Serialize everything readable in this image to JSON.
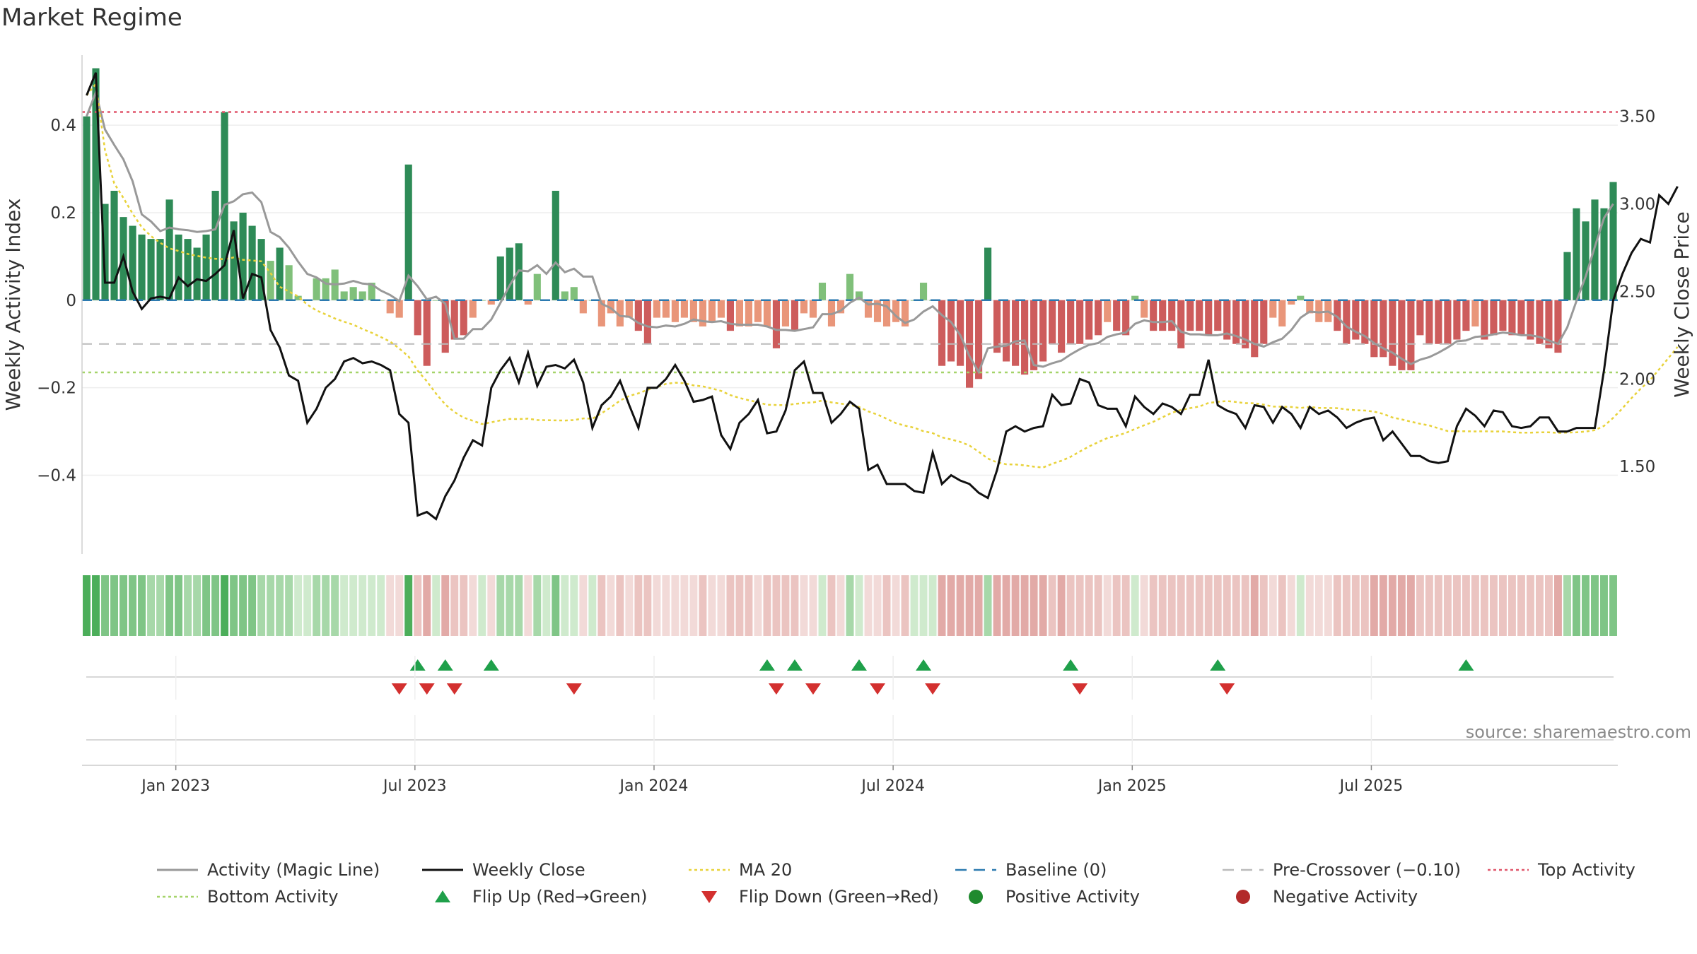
{
  "title": "Market Regime",
  "source": "source: sharemaestro.com",
  "chart_data": {
    "type": "bar",
    "x_ticks": [
      "Jan 2023",
      "Jul 2023",
      "Jan 2024",
      "Jul 2024",
      "Jan 2025",
      "Jul 2025"
    ],
    "y_left": {
      "label": "Weekly Activity Index",
      "range": [
        -0.58,
        0.56
      ],
      "ticks": [
        0.4,
        0.2,
        0,
        -0.2,
        -0.4
      ],
      "tick_labels": [
        "0.4",
        "0.2",
        "0",
        "−0.2",
        "−0.4"
      ]
    },
    "y_right": {
      "label": "Weekly Close Price",
      "range": [
        1.0,
        3.85
      ],
      "ticks": [
        3.5,
        3.0,
        2.5,
        2.0,
        1.5
      ],
      "tick_labels": [
        "3.50",
        "3.00",
        "2.50",
        "2.00",
        "1.50"
      ]
    },
    "reference_lines": {
      "top_activity": 0.43,
      "pre_crossover": -0.1,
      "bottom_activity": -0.165,
      "baseline": 0
    },
    "activity": [
      0.42,
      0.53,
      0.22,
      0.25,
      0.19,
      0.17,
      0.15,
      0.14,
      0.14,
      0.23,
      0.15,
      0.14,
      0.12,
      0.15,
      0.25,
      0.43,
      0.18,
      0.2,
      0.17,
      0.14,
      0.09,
      0.12,
      0.08,
      0.01,
      0.0,
      0.05,
      0.05,
      0.07,
      0.02,
      0.03,
      0.02,
      0.04,
      0.0,
      -0.03,
      -0.04,
      0.31,
      -0.08,
      -0.15,
      0.0,
      -0.12,
      -0.09,
      -0.08,
      -0.04,
      0.0,
      -0.01,
      0.1,
      0.12,
      0.13,
      -0.01,
      0.06,
      0.0,
      0.25,
      0.02,
      0.03,
      -0.03,
      0.0,
      -0.06,
      -0.03,
      -0.06,
      -0.04,
      -0.07,
      -0.1,
      -0.04,
      -0.04,
      -0.05,
      -0.04,
      -0.05,
      -0.06,
      -0.05,
      -0.04,
      -0.07,
      -0.06,
      -0.06,
      -0.05,
      -0.06,
      -0.11,
      -0.06,
      -0.07,
      -0.03,
      -0.04,
      0.04,
      -0.06,
      -0.03,
      0.06,
      0.02,
      -0.04,
      -0.05,
      -0.06,
      -0.05,
      -0.06,
      0.0,
      0.04,
      0.0,
      -0.15,
      -0.14,
      -0.15,
      -0.2,
      -0.18,
      0.12,
      -0.12,
      -0.14,
      -0.15,
      -0.17,
      -0.16,
      -0.14,
      -0.1,
      -0.12,
      -0.1,
      -0.1,
      -0.09,
      -0.08,
      -0.05,
      -0.07,
      -0.08,
      0.01,
      -0.04,
      -0.07,
      -0.07,
      -0.07,
      -0.11,
      -0.07,
      -0.07,
      -0.08,
      -0.07,
      -0.09,
      -0.1,
      -0.11,
      -0.13,
      -0.1,
      -0.04,
      -0.06,
      -0.01,
      0.01,
      -0.03,
      -0.05,
      -0.05,
      -0.07,
      -0.1,
      -0.09,
      -0.1,
      -0.13,
      -0.13,
      -0.15,
      -0.16,
      -0.16,
      -0.08,
      -0.1,
      -0.1,
      -0.1,
      -0.09,
      -0.07,
      -0.06,
      -0.09,
      -0.08,
      -0.07,
      -0.08,
      -0.08,
      -0.09,
      -0.1,
      -0.11,
      -0.12,
      0.11,
      0.21,
      0.18,
      0.23,
      0.21,
      0.27
    ],
    "weekly_close": [
      3.62,
      3.75,
      2.55,
      2.55,
      2.7,
      2.5,
      2.4,
      2.46,
      2.47,
      2.46,
      2.58,
      2.53,
      2.57,
      2.56,
      2.6,
      2.65,
      2.85,
      2.46,
      2.6,
      2.58,
      2.28,
      2.18,
      2.02,
      1.99,
      1.75,
      1.83,
      1.95,
      2.0,
      2.1,
      2.12,
      2.09,
      2.1,
      2.08,
      2.05,
      1.8,
      1.75,
      1.22,
      1.24,
      1.2,
      1.33,
      1.42,
      1.55,
      1.65,
      1.62,
      1.95,
      2.05,
      2.12,
      1.98,
      2.15,
      1.96,
      2.07,
      2.08,
      2.06,
      2.11,
      1.98,
      1.72,
      1.85,
      1.9,
      1.99,
      1.85,
      1.72,
      1.95,
      1.95,
      2.0,
      2.08,
      1.99,
      1.87,
      1.88,
      1.9,
      1.68,
      1.6,
      1.75,
      1.8,
      1.88,
      1.69,
      1.7,
      1.82,
      2.05,
      2.1,
      1.92,
      1.92,
      1.75,
      1.8,
      1.87,
      1.83,
      1.48,
      1.51,
      1.4,
      1.4,
      1.4,
      1.36,
      1.35,
      1.58,
      1.4,
      1.45,
      1.42,
      1.4,
      1.35,
      1.32,
      1.48,
      1.7,
      1.73,
      1.7,
      1.72,
      1.73,
      1.91,
      1.85,
      1.86,
      2.0,
      1.98,
      1.85,
      1.83,
      1.83,
      1.73,
      1.9,
      1.84,
      1.8,
      1.86,
      1.84,
      1.8,
      1.91,
      1.91,
      2.11,
      1.85,
      1.82,
      1.8,
      1.72,
      1.85,
      1.84,
      1.75,
      1.84,
      1.8,
      1.72,
      1.84,
      1.8,
      1.82,
      1.78,
      1.72,
      1.75,
      1.77,
      1.78,
      1.65,
      1.7,
      1.63,
      1.56,
      1.56,
      1.53,
      1.52,
      1.53,
      1.73,
      1.83,
      1.79,
      1.73,
      1.82,
      1.81,
      1.73,
      1.72,
      1.73,
      1.78,
      1.78,
      1.7,
      1.7,
      1.72,
      1.72,
      1.72,
      2.05,
      2.45,
      2.6,
      2.72,
      2.8,
      2.78,
      3.05,
      3.0,
      3.1
    ],
    "flip_up": [
      36,
      39,
      44,
      74,
      77,
      84,
      91,
      107,
      123,
      150
    ],
    "flip_down": [
      34,
      37,
      40,
      53,
      75,
      79,
      86,
      92,
      108,
      124
    ],
    "legend": [
      {
        "label": "Activity (Magic Line)",
        "color": "#999999",
        "style": "solid-line"
      },
      {
        "label": "Weekly Close",
        "color": "#111111",
        "style": "solid-line"
      },
      {
        "label": "MA 20",
        "color": "#e8d23a",
        "style": "dotted-line"
      },
      {
        "label": "Baseline (0)",
        "color": "#2c7ab0",
        "style": "dashed-line"
      },
      {
        "label": "Pre-Crossover (−0.10)",
        "color": "#bbbbbb",
        "style": "dashed-line"
      },
      {
        "label": "Top Activity",
        "color": "#e0566b",
        "style": "dotted-line"
      },
      {
        "label": "Bottom Activity",
        "color": "#a5d46a",
        "style": "dotted-line"
      },
      {
        "label": "Flip Up (Red→Green)",
        "color": "#1fa04a",
        "style": "triangle-up"
      },
      {
        "label": "Flip Down (Green→Red)",
        "color": "#d3302f",
        "style": "triangle-down"
      },
      {
        "label": "Positive Activity",
        "color": "#1f8a2e",
        "style": "circle"
      },
      {
        "label": "Negative Activity",
        "color": "#b22a2a",
        "style": "circle"
      }
    ]
  }
}
